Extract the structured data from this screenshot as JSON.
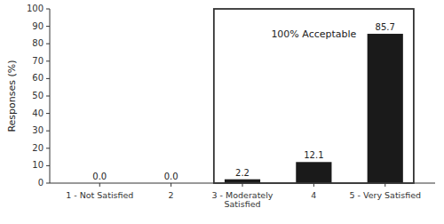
{
  "chart_data": {
    "type": "bar",
    "categories": [
      "1 - Not Satisfied",
      "2",
      "3 - Moderately\nSatisfied",
      "4",
      "5 - Very Satisfied"
    ],
    "values": [
      0.0,
      0.0,
      2.2,
      12.1,
      85.7
    ],
    "value_labels": [
      "0.0",
      "0.0",
      "2.2",
      "12.1",
      "85.7"
    ],
    "data_labels": true,
    "color": "#1a1a1a",
    "ylabel": "Responses (%)",
    "ylim": [
      0,
      100
    ],
    "yticks": [
      0,
      10,
      20,
      30,
      40,
      50,
      60,
      70,
      80,
      90,
      100
    ],
    "grid": false,
    "annotations": [
      {
        "text": "100% Acceptable",
        "category": "4",
        "y": 88,
        "box": [
          "3 - Moderately\nSatisfied",
          "5 - Very Satisfied"
        ]
      }
    ]
  }
}
